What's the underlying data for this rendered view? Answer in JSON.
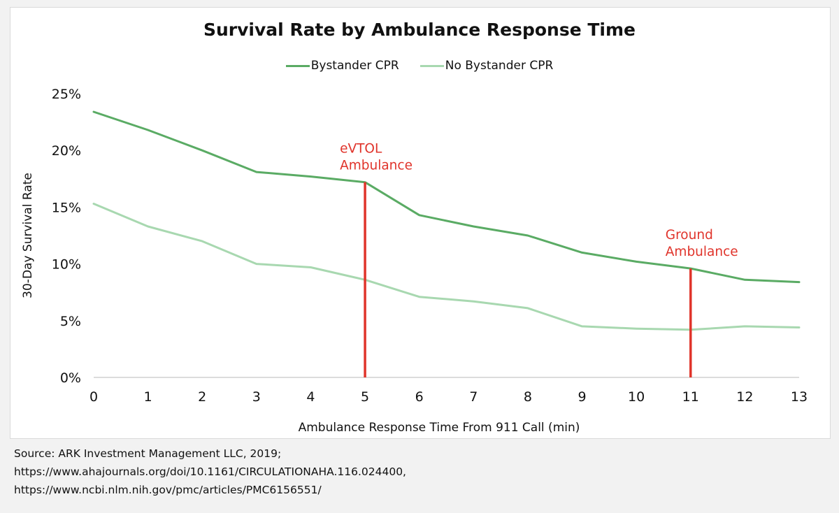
{
  "chart_data": {
    "type": "line",
    "title": "Survival Rate by Ambulance Response Time",
    "xlabel": "Ambulance Response Time From 911 Call (min)",
    "ylabel": "30-Day Survival Rate",
    "x": [
      0,
      1,
      2,
      3,
      4,
      5,
      6,
      7,
      8,
      9,
      10,
      11,
      12,
      13
    ],
    "xlim": [
      0,
      13
    ],
    "ylim": [
      0,
      25
    ],
    "yticks": [
      0,
      5,
      10,
      15,
      20,
      25
    ],
    "ytick_labels": [
      "0%",
      "5%",
      "10%",
      "15%",
      "20%",
      "25%"
    ],
    "xtick_labels": [
      "0",
      "1",
      "2",
      "3",
      "4",
      "5",
      "6",
      "7",
      "8",
      "9",
      "10",
      "11",
      "12",
      "13"
    ],
    "grid": false,
    "legend_position": "top-center",
    "series": [
      {
        "name": "Bystander CPR",
        "color": "#5aab64",
        "values": [
          23.4,
          21.8,
          20.0,
          18.1,
          17.7,
          17.2,
          14.3,
          13.3,
          12.5,
          11.0,
          10.2,
          9.6,
          8.6,
          8.4
        ]
      },
      {
        "name": "No Bystander CPR",
        "color": "#a8d8b0",
        "values": [
          15.3,
          13.3,
          12.0,
          10.0,
          9.7,
          8.6,
          7.1,
          6.7,
          6.1,
          4.5,
          4.3,
          4.2,
          4.5,
          4.4
        ]
      }
    ],
    "annotations": [
      {
        "x": 5,
        "y": 17.2,
        "label_lines": [
          "eVTOL",
          "Ambulance"
        ],
        "color": "#e0342b"
      },
      {
        "x": 11,
        "y": 9.6,
        "label_lines": [
          "Ground",
          "Ambulance"
        ],
        "color": "#e0342b"
      }
    ]
  },
  "footer": {
    "lines": [
      "Source: ARK Investment Management LLC, 2019;",
      "https://www.ahajournals.org/doi/10.1161/CIRCULATIONAHA.116.024400,",
      "https://www.ncbi.nlm.nih.gov/pmc/articles/PMC6156551/"
    ]
  }
}
